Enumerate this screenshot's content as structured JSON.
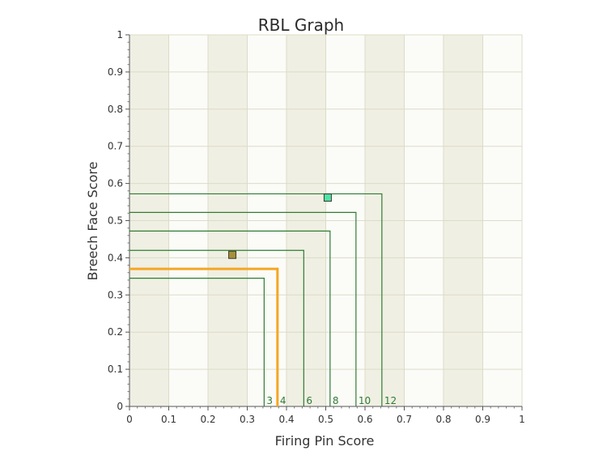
{
  "chart_data": {
    "type": "scatter",
    "title": "RBL Graph",
    "xlabel": "Firing Pin Score",
    "ylabel": "Breech Face Score",
    "xlim": [
      0,
      1
    ],
    "ylim": [
      0,
      1
    ],
    "x_ticks": [
      "0",
      "0.1",
      "0.2",
      "0.3",
      "0.4",
      "0.5",
      "0.6",
      "0.7",
      "0.8",
      "0.9",
      "1"
    ],
    "y_ticks": [
      "0",
      "0.1",
      "0.2",
      "0.3",
      "0.4",
      "0.5",
      "0.6",
      "0.7",
      "0.8",
      "0.9",
      "1"
    ],
    "grid": true,
    "threshold_lines": [
      {
        "label": "3",
        "x": 0.343,
        "y": 0.345,
        "color": "#2e7d32",
        "highlighted": false
      },
      {
        "label": "4",
        "x": 0.377,
        "y": 0.37,
        "color": "#f5a623",
        "highlighted": true
      },
      {
        "label": "6",
        "x": 0.444,
        "y": 0.42,
        "color": "#2e7d32",
        "highlighted": false
      },
      {
        "label": "8",
        "x": 0.511,
        "y": 0.472,
        "color": "#2e7d32",
        "highlighted": false
      },
      {
        "label": "10",
        "x": 0.577,
        "y": 0.522,
        "color": "#2e7d32",
        "highlighted": false
      },
      {
        "label": "12",
        "x": 0.643,
        "y": 0.572,
        "color": "#2e7d32",
        "highlighted": false
      }
    ],
    "points": [
      {
        "x": 0.262,
        "y": 0.408,
        "color": "#a88f3a"
      },
      {
        "x": 0.505,
        "y": 0.562,
        "color": "#4ee3a8"
      }
    ]
  }
}
